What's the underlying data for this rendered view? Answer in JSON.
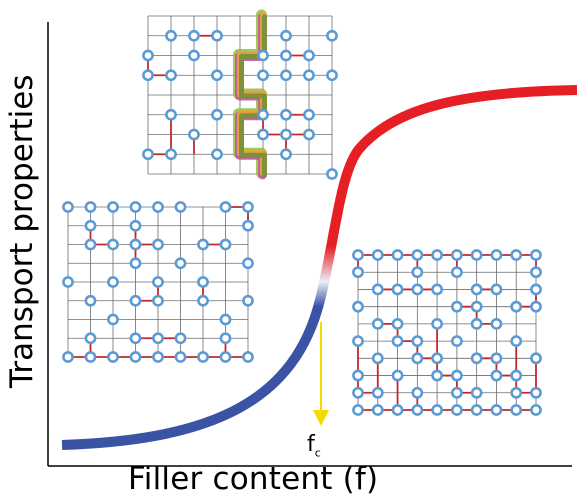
{
  "labels": {
    "x_axis": "Filler content (f)",
    "y_axis": "Transport properties",
    "threshold_main": "f",
    "threshold_sub": "c"
  },
  "colors": {
    "curve_low": "#3a53a4",
    "curve_high": "#e61f26",
    "grid_line": "#6b6b6b",
    "filler_circle": "#5b9bd5",
    "connection": "#c0282d",
    "threshold_arrow": "#f2dc00",
    "path_colors": [
      "#8fbf3a",
      "#c84fa8",
      "#e7a83a",
      "#6b8f3a"
    ]
  },
  "insets": [
    {
      "state": "below-threshold",
      "cols": 9,
      "rows": 9,
      "filled": [
        [
          0,
          0
        ],
        [
          1,
          0
        ],
        [
          2,
          0
        ],
        [
          3,
          0
        ],
        [
          4,
          0
        ],
        [
          5,
          0
        ],
        [
          7,
          0
        ],
        [
          8,
          0
        ],
        [
          1,
          1
        ],
        [
          3,
          1
        ],
        [
          8,
          1
        ],
        [
          1,
          2
        ],
        [
          2,
          2
        ],
        [
          3,
          2
        ],
        [
          4,
          2
        ],
        [
          6,
          2
        ],
        [
          7,
          2
        ],
        [
          3,
          3
        ],
        [
          5,
          3
        ],
        [
          8,
          3
        ],
        [
          0,
          4
        ],
        [
          2,
          4
        ],
        [
          4,
          4
        ],
        [
          6,
          4
        ],
        [
          1,
          5
        ],
        [
          3,
          5
        ],
        [
          4,
          5
        ],
        [
          6,
          5
        ],
        [
          8,
          5
        ],
        [
          2,
          6
        ],
        [
          7,
          6
        ],
        [
          1,
          7
        ],
        [
          3,
          7
        ],
        [
          4,
          7
        ],
        [
          5,
          7
        ],
        [
          7,
          7
        ],
        [
          0,
          8
        ],
        [
          1,
          8
        ],
        [
          2,
          8
        ],
        [
          3,
          8
        ],
        [
          4,
          8
        ],
        [
          5,
          8
        ],
        [
          6,
          8
        ],
        [
          7,
          8
        ],
        [
          8,
          8
        ]
      ],
      "links": [
        [
          0,
          8,
          1,
          8
        ],
        [
          1,
          8,
          2,
          8
        ],
        [
          2,
          8,
          3,
          8
        ],
        [
          3,
          8,
          4,
          8
        ],
        [
          4,
          8,
          5,
          8
        ],
        [
          5,
          8,
          6,
          8
        ],
        [
          6,
          8,
          7,
          8
        ],
        [
          7,
          8,
          8,
          8
        ],
        [
          3,
          7,
          4,
          7
        ],
        [
          4,
          7,
          5,
          7
        ],
        [
          1,
          7,
          1,
          8
        ],
        [
          7,
          7,
          7,
          8
        ],
        [
          7,
          0,
          8,
          0
        ],
        [
          8,
          0,
          8,
          1
        ],
        [
          1,
          1,
          1,
          2
        ],
        [
          1,
          2,
          2,
          2
        ],
        [
          3,
          1,
          3,
          2
        ],
        [
          3,
          2,
          4,
          2
        ],
        [
          3,
          2,
          3,
          3
        ],
        [
          6,
          2,
          7,
          2
        ],
        [
          4,
          4,
          4,
          5
        ],
        [
          3,
          5,
          4,
          5
        ],
        [
          6,
          4,
          6,
          5
        ]
      ]
    },
    {
      "state": "at-threshold",
      "cols": 9,
      "rows": 9,
      "filled": [
        [
          1,
          1
        ],
        [
          2,
          1
        ],
        [
          3,
          1
        ],
        [
          6,
          1
        ],
        [
          8,
          1
        ],
        [
          0,
          2
        ],
        [
          2,
          2
        ],
        [
          5,
          2
        ],
        [
          6,
          2
        ],
        [
          7,
          2
        ],
        [
          0,
          3
        ],
        [
          1,
          3
        ],
        [
          3,
          3
        ],
        [
          5,
          3
        ],
        [
          6,
          3
        ],
        [
          7,
          3
        ],
        [
          8,
          3
        ],
        [
          1,
          5
        ],
        [
          3,
          5
        ],
        [
          5,
          5
        ],
        [
          6,
          5
        ],
        [
          7,
          5
        ],
        [
          2,
          6
        ],
        [
          5,
          6
        ],
        [
          6,
          6
        ],
        [
          7,
          6
        ],
        [
          0,
          7
        ],
        [
          1,
          7
        ],
        [
          3,
          7
        ],
        [
          6,
          7
        ],
        [
          8,
          8
        ]
      ],
      "links": [
        [
          2,
          1,
          3,
          1
        ],
        [
          0,
          2,
          0,
          3
        ],
        [
          0,
          3,
          1,
          3
        ],
        [
          6,
          2,
          7,
          2
        ],
        [
          6,
          5,
          7,
          5
        ],
        [
          5,
          5,
          5,
          6
        ],
        [
          5,
          6,
          6,
          6
        ],
        [
          6,
          6,
          7,
          6
        ],
        [
          6,
          6,
          6,
          7
        ],
        [
          1,
          7,
          1,
          5
        ],
        [
          0,
          7,
          1,
          7
        ],
        [
          2,
          6,
          2,
          7
        ]
      ],
      "path": [
        [
          5,
          0
        ],
        [
          5,
          2
        ],
        [
          4,
          2
        ],
        [
          4,
          4
        ],
        [
          5,
          4
        ],
        [
          5,
          5
        ],
        [
          4,
          5
        ],
        [
          4,
          7
        ],
        [
          5,
          7
        ],
        [
          5,
          8
        ]
      ]
    },
    {
      "state": "above-threshold",
      "cols": 10,
      "rows": 10,
      "filled": [
        [
          0,
          0
        ],
        [
          1,
          0
        ],
        [
          2,
          0
        ],
        [
          3,
          0
        ],
        [
          4,
          0
        ],
        [
          5,
          0
        ],
        [
          6,
          0
        ],
        [
          7,
          0
        ],
        [
          8,
          0
        ],
        [
          9,
          0
        ],
        [
          0,
          1
        ],
        [
          3,
          1
        ],
        [
          5,
          1
        ],
        [
          9,
          1
        ],
        [
          1,
          2
        ],
        [
          2,
          2
        ],
        [
          3,
          2
        ],
        [
          4,
          2
        ],
        [
          6,
          2
        ],
        [
          7,
          2
        ],
        [
          9,
          2
        ],
        [
          0,
          3
        ],
        [
          5,
          3
        ],
        [
          6,
          3
        ],
        [
          8,
          3
        ],
        [
          9,
          3
        ],
        [
          1,
          4
        ],
        [
          2,
          4
        ],
        [
          4,
          4
        ],
        [
          6,
          4
        ],
        [
          7,
          4
        ],
        [
          0,
          5
        ],
        [
          2,
          5
        ],
        [
          3,
          5
        ],
        [
          5,
          5
        ],
        [
          8,
          5
        ],
        [
          1,
          6
        ],
        [
          3,
          6
        ],
        [
          4,
          6
        ],
        [
          6,
          6
        ],
        [
          7,
          6
        ],
        [
          9,
          6
        ],
        [
          0,
          7
        ],
        [
          2,
          7
        ],
        [
          4,
          7
        ],
        [
          5,
          7
        ],
        [
          7,
          7
        ],
        [
          8,
          7
        ],
        [
          0,
          8
        ],
        [
          1,
          8
        ],
        [
          3,
          8
        ],
        [
          5,
          8
        ],
        [
          6,
          8
        ],
        [
          8,
          8
        ],
        [
          9,
          8
        ],
        [
          0,
          9
        ],
        [
          1,
          9
        ],
        [
          2,
          9
        ],
        [
          3,
          9
        ],
        [
          4,
          9
        ],
        [
          5,
          9
        ],
        [
          6,
          9
        ],
        [
          7,
          9
        ],
        [
          8,
          9
        ],
        [
          9,
          9
        ]
      ],
      "links": [
        [
          0,
          0,
          1,
          0
        ],
        [
          1,
          0,
          2,
          0
        ],
        [
          2,
          0,
          3,
          0
        ],
        [
          3,
          0,
          4,
          0
        ],
        [
          4,
          0,
          5,
          0
        ],
        [
          5,
          0,
          6,
          0
        ],
        [
          6,
          0,
          7,
          0
        ],
        [
          7,
          0,
          8,
          0
        ],
        [
          8,
          0,
          9,
          0
        ],
        [
          0,
          9,
          1,
          9
        ],
        [
          1,
          9,
          2,
          9
        ],
        [
          2,
          9,
          3,
          9
        ],
        [
          3,
          9,
          4,
          9
        ],
        [
          4,
          9,
          5,
          9
        ],
        [
          5,
          9,
          6,
          9
        ],
        [
          6,
          9,
          7,
          9
        ],
        [
          7,
          9,
          8,
          9
        ],
        [
          8,
          9,
          9,
          9
        ],
        [
          0,
          0,
          0,
          1
        ],
        [
          9,
          0,
          9,
          1
        ],
        [
          3,
          0,
          3,
          1
        ],
        [
          5,
          0,
          5,
          1
        ],
        [
          1,
          2,
          2,
          2
        ],
        [
          2,
          2,
          3,
          2
        ],
        [
          3,
          2,
          4,
          2
        ],
        [
          6,
          2,
          7,
          2
        ],
        [
          9,
          2,
          9,
          3
        ],
        [
          5,
          3,
          6,
          3
        ],
        [
          8,
          3,
          9,
          3
        ],
        [
          6,
          3,
          6,
          4
        ],
        [
          6,
          4,
          7,
          4
        ],
        [
          1,
          4,
          2,
          4
        ],
        [
          2,
          4,
          2,
          5
        ],
        [
          2,
          5,
          3,
          5
        ],
        [
          3,
          5,
          3,
          6
        ],
        [
          3,
          6,
          4,
          6
        ],
        [
          4,
          6,
          4,
          7
        ],
        [
          4,
          7,
          5,
          7
        ],
        [
          5,
          7,
          5,
          8
        ],
        [
          5,
          8,
          6,
          8
        ],
        [
          0,
          5,
          0,
          7
        ],
        [
          0,
          7,
          0,
          8
        ],
        [
          0,
          8,
          1,
          8
        ],
        [
          7,
          6,
          7,
          7
        ],
        [
          7,
          7,
          8,
          7
        ],
        [
          8,
          7,
          8,
          8
        ],
        [
          8,
          8,
          9,
          8
        ],
        [
          6,
          6,
          7,
          6
        ],
        [
          2,
          7,
          2,
          9
        ],
        [
          9,
          6,
          9,
          8
        ],
        [
          3,
          8,
          3,
          9
        ],
        [
          1,
          6,
          1,
          8
        ],
        [
          8,
          5,
          8,
          7
        ],
        [
          4,
          4,
          4,
          6
        ]
      ]
    }
  ]
}
